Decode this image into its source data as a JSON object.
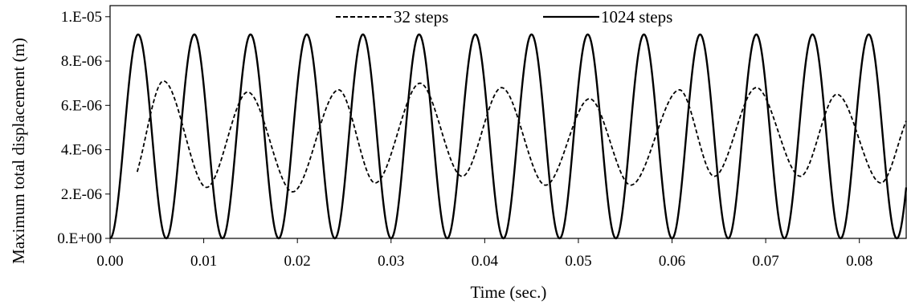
{
  "chart_data": {
    "type": "line",
    "title": "",
    "xlabel": "Time (sec.)",
    "ylabel": "Maximum total displacement (m)",
    "xlim": [
      0,
      0.085
    ],
    "ylim": [
      0,
      1.05e-05
    ],
    "x_ticks": [
      0,
      0.01,
      0.02,
      0.03,
      0.04,
      0.05,
      0.06,
      0.07,
      0.08
    ],
    "x_tick_labels": [
      "0.00",
      "0.01",
      "0.02",
      "0.03",
      "0.04",
      "0.05",
      "0.06",
      "0.07",
      "0.08"
    ],
    "y_ticks": [
      0,
      2e-06,
      4e-06,
      6e-06,
      8e-06,
      1e-05
    ],
    "y_tick_labels": [
      "0.E+00",
      "2.E-06",
      "4.E-06",
      "6.E-06",
      "8.E-06",
      "1.E-05"
    ],
    "grid": false,
    "legend_position": "top-center",
    "series": [
      {
        "name": "32 steps",
        "style": "dashed",
        "color": "#000000",
        "points": [
          [
            0.0029,
            3e-06
          ],
          [
            0.0057,
            7.1e-06
          ],
          [
            0.0103,
            2.3e-06
          ],
          [
            0.0147,
            6.6e-06
          ],
          [
            0.0195,
            2.1e-06
          ],
          [
            0.0244,
            6.7e-06
          ],
          [
            0.0283,
            2.5e-06
          ],
          [
            0.0331,
            7e-06
          ],
          [
            0.0376,
            2.8e-06
          ],
          [
            0.0418,
            6.8e-06
          ],
          [
            0.0465,
            2.4e-06
          ],
          [
            0.0512,
            6.3e-06
          ],
          [
            0.0556,
            2.4e-06
          ],
          [
            0.0608,
            6.7e-06
          ],
          [
            0.0645,
            2.8e-06
          ],
          [
            0.069,
            6.8e-06
          ],
          [
            0.0737,
            2.8e-06
          ],
          [
            0.0776,
            6.5e-06
          ],
          [
            0.0823,
            2.5e-06
          ],
          [
            0.085,
            5.3e-06
          ]
        ]
      },
      {
        "name": "1024 steps",
        "style": "solid",
        "color": "#000000",
        "amplitude": 9.2e-06,
        "period": 0.006,
        "peak_x": 0.003,
        "x_start": 0,
        "x_end": 0.085
      }
    ]
  }
}
